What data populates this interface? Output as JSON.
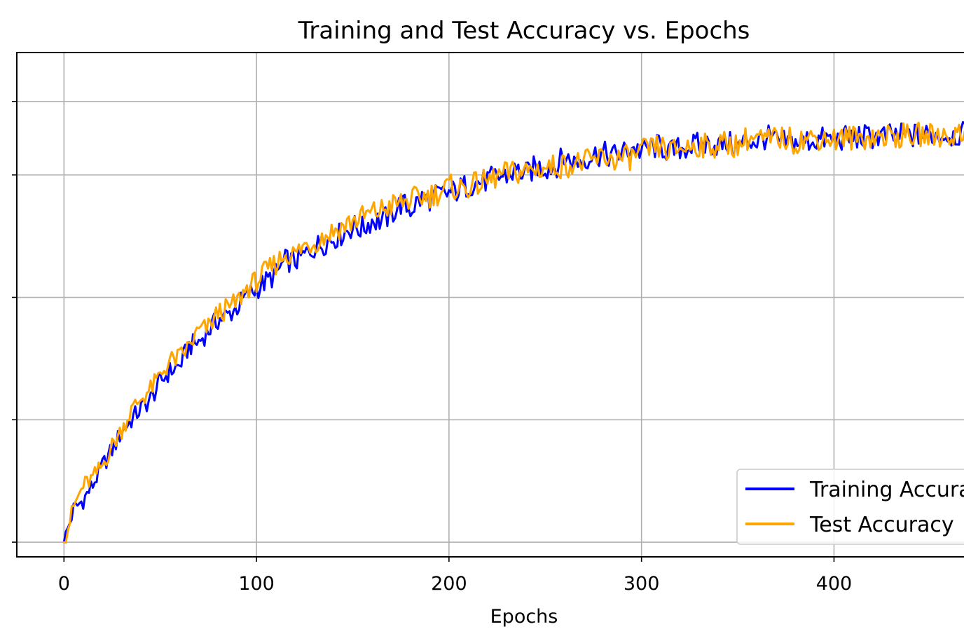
{
  "chart_data": {
    "type": "line",
    "title": "Training and Test Accuracy vs. Epochs",
    "xlabel": "Epochs",
    "ylabel": "",
    "xlim": [
      -24.5,
      485
    ],
    "ylim": [
      -0.03,
      1.0
    ],
    "x_ticks": [
      0,
      100,
      200,
      300,
      400
    ],
    "x_tick_labels": [
      "0",
      "100",
      "200",
      "300",
      "400"
    ],
    "y_ticks": [
      0.0,
      0.25,
      0.5,
      0.75,
      0.9
    ],
    "grid": true,
    "legend_position": "lower-right",
    "series": [
      {
        "name": "Training Accuracy",
        "color": "#0000ff",
        "x": [
          0,
          5,
          10,
          15,
          20,
          25,
          30,
          35,
          40,
          45,
          50,
          55,
          60,
          65,
          70,
          75,
          80,
          85,
          90,
          95,
          100,
          105,
          110,
          115,
          120,
          125,
          130,
          135,
          140,
          145,
          150,
          155,
          160,
          165,
          170,
          175,
          180,
          185,
          190,
          195,
          200,
          205,
          210,
          215,
          220,
          225,
          230,
          235,
          240,
          245,
          250,
          255,
          260,
          265,
          270,
          275,
          280,
          285,
          290,
          295,
          300,
          305,
          310,
          315,
          320,
          325,
          330,
          335,
          340,
          345,
          350,
          355,
          360,
          365,
          370,
          375,
          380,
          385,
          390,
          395,
          400,
          405,
          410,
          415,
          420,
          425,
          430,
          435,
          440,
          445,
          450,
          455,
          460,
          465,
          470,
          475,
          480,
          485
        ],
        "y": [
          0.0,
          0.067,
          0.086,
          0.117,
          0.156,
          0.188,
          0.226,
          0.25,
          0.273,
          0.292,
          0.327,
          0.349,
          0.36,
          0.4,
          0.409,
          0.432,
          0.454,
          0.463,
          0.48,
          0.504,
          0.517,
          0.532,
          0.547,
          0.575,
          0.574,
          0.586,
          0.602,
          0.611,
          0.621,
          0.631,
          0.645,
          0.64,
          0.658,
          0.656,
          0.67,
          0.691,
          0.68,
          0.7,
          0.702,
          0.709,
          0.712,
          0.72,
          0.73,
          0.735,
          0.739,
          0.745,
          0.749,
          0.759,
          0.751,
          0.766,
          0.765,
          0.767,
          0.787,
          0.775,
          0.782,
          0.791,
          0.793,
          0.789,
          0.794,
          0.807,
          0.798,
          0.807,
          0.808,
          0.796,
          0.804,
          0.808,
          0.812,
          0.812,
          0.812,
          0.814,
          0.808,
          0.822,
          0.818,
          0.828,
          0.818,
          0.815,
          0.816,
          0.82,
          0.821,
          0.823,
          0.821,
          0.825,
          0.826,
          0.828,
          0.827,
          0.829,
          0.829,
          0.83,
          0.83,
          0.831,
          0.831,
          0.831,
          0.832,
          0.832,
          0.832,
          0.832,
          0.833,
          0.823
        ]
      },
      {
        "name": "Test Accuracy",
        "color": "#ffa500",
        "x": [
          0,
          5,
          10,
          15,
          20,
          25,
          30,
          35,
          40,
          45,
          50,
          55,
          60,
          65,
          70,
          75,
          80,
          85,
          90,
          95,
          100,
          105,
          110,
          115,
          120,
          125,
          130,
          135,
          140,
          145,
          150,
          155,
          160,
          165,
          170,
          175,
          180,
          185,
          190,
          195,
          200,
          205,
          210,
          215,
          220,
          225,
          230,
          235,
          240,
          245,
          250,
          255,
          260,
          265,
          270,
          275,
          280,
          285,
          290,
          295,
          300,
          305,
          310,
          315,
          320,
          325,
          330,
          335,
          340,
          345,
          350,
          355,
          360,
          365,
          370,
          375,
          380,
          385,
          390,
          395,
          400,
          405,
          410,
          415,
          420,
          425,
          430,
          435,
          440,
          445,
          450,
          455,
          460,
          465,
          470,
          475,
          480,
          485
        ],
        "y": [
          0.0,
          0.072,
          0.115,
          0.131,
          0.157,
          0.197,
          0.23,
          0.269,
          0.293,
          0.312,
          0.341,
          0.37,
          0.377,
          0.4,
          0.432,
          0.438,
          0.469,
          0.476,
          0.491,
          0.519,
          0.533,
          0.553,
          0.569,
          0.589,
          0.588,
          0.606,
          0.612,
          0.624,
          0.636,
          0.645,
          0.656,
          0.664,
          0.672,
          0.679,
          0.687,
          0.693,
          0.699,
          0.704,
          0.709,
          0.714,
          0.727,
          0.722,
          0.726,
          0.732,
          0.737,
          0.747,
          0.753,
          0.755,
          0.758,
          0.761,
          0.765,
          0.767,
          0.77,
          0.773,
          0.776,
          0.778,
          0.787,
          0.782,
          0.784,
          0.786,
          0.798,
          0.802,
          0.808,
          0.796,
          0.805,
          0.808,
          0.812,
          0.806,
          0.813,
          0.814,
          0.81,
          0.825,
          0.825,
          0.818,
          0.826,
          0.824,
          0.818,
          0.824,
          0.825,
          0.827,
          0.823,
          0.825,
          0.826,
          0.827,
          0.828,
          0.829,
          0.829,
          0.83,
          0.83,
          0.831,
          0.831,
          0.831,
          0.831,
          0.832,
          0.832,
          0.832,
          0.832,
          0.825
        ]
      }
    ]
  }
}
